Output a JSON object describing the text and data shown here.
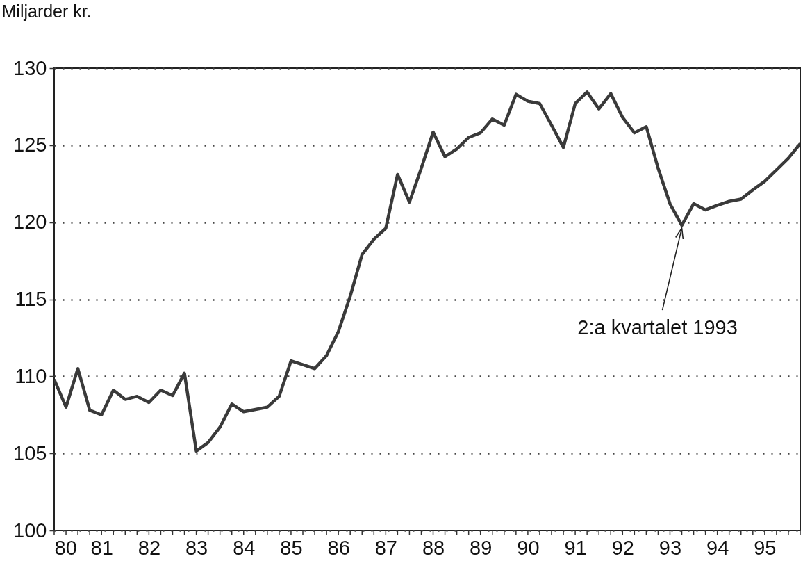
{
  "chart_data": {
    "type": "line",
    "ylabel": "Miljarder kr.",
    "x": [
      1980,
      1980.25,
      1980.5,
      1980.75,
      1981,
      1981.25,
      1981.5,
      1981.75,
      1982,
      1982.25,
      1982.5,
      1982.75,
      1983,
      1983.25,
      1983.5,
      1983.75,
      1984,
      1984.25,
      1984.5,
      1984.75,
      1985,
      1985.25,
      1985.5,
      1985.75,
      1986,
      1986.25,
      1986.5,
      1986.75,
      1987,
      1987.25,
      1987.5,
      1987.75,
      1988,
      1988.25,
      1988.5,
      1988.75,
      1989,
      1989.25,
      1989.5,
      1989.75,
      1990,
      1990.25,
      1990.5,
      1990.75,
      1991,
      1991.25,
      1991.5,
      1991.75,
      1992,
      1992.25,
      1992.5,
      1992.75,
      1993,
      1993.25,
      1993.5,
      1993.75,
      1994,
      1994.25,
      1994.5,
      1994.75,
      1995,
      1995.25,
      1995.5,
      1995.75
    ],
    "series": [
      {
        "color": "#3a3a3a",
        "values": [
          109.8,
          108.0,
          110.5,
          107.8,
          107.5,
          109.1,
          108.5,
          108.7,
          108.3,
          109.1,
          108.75,
          110.2,
          105.15,
          105.7,
          106.7,
          108.2,
          107.7,
          107.85,
          108.0,
          108.7,
          111.0,
          110.75,
          110.5,
          111.35,
          112.9,
          115.2,
          117.9,
          118.9,
          119.6,
          123.1,
          121.3,
          123.5,
          125.85,
          124.25,
          124.75,
          125.5,
          125.8,
          126.7,
          126.3,
          128.3,
          127.85,
          127.7,
          126.3,
          124.85,
          127.7,
          128.45,
          127.35,
          128.35,
          126.8,
          125.8,
          126.2,
          123.5,
          121.2,
          119.8,
          121.2,
          120.8,
          121.1,
          121.35,
          121.5,
          122.1,
          122.65,
          123.4,
          124.15,
          125.1
        ]
      }
    ],
    "xlim": [
      1980,
      1995.75
    ],
    "xticks": [
      {
        "value": 1980,
        "label": "80"
      },
      {
        "value": 1980.25,
        "label": null
      },
      {
        "value": 1980.5,
        "label": null
      },
      {
        "value": 1980.75,
        "label": null
      },
      {
        "value": 1981,
        "label": "81"
      },
      {
        "value": 1981.25,
        "label": null
      },
      {
        "value": 1981.5,
        "label": null
      },
      {
        "value": 1981.75,
        "label": null
      },
      {
        "value": 1982,
        "label": "82"
      },
      {
        "value": 1982.25,
        "label": null
      },
      {
        "value": 1982.5,
        "label": null
      },
      {
        "value": 1982.75,
        "label": null
      },
      {
        "value": 1983,
        "label": "83"
      },
      {
        "value": 1983.25,
        "label": null
      },
      {
        "value": 1983.5,
        "label": null
      },
      {
        "value": 1983.75,
        "label": null
      },
      {
        "value": 1984,
        "label": "84"
      },
      {
        "value": 1984.25,
        "label": null
      },
      {
        "value": 1984.5,
        "label": null
      },
      {
        "value": 1984.75,
        "label": null
      },
      {
        "value": 1985,
        "label": "85"
      },
      {
        "value": 1985.25,
        "label": null
      },
      {
        "value": 1985.5,
        "label": null
      },
      {
        "value": 1985.75,
        "label": null
      },
      {
        "value": 1986,
        "label": "86"
      },
      {
        "value": 1986.25,
        "label": null
      },
      {
        "value": 1986.5,
        "label": null
      },
      {
        "value": 1986.75,
        "label": null
      },
      {
        "value": 1987,
        "label": "87"
      },
      {
        "value": 1987.25,
        "label": null
      },
      {
        "value": 1987.5,
        "label": null
      },
      {
        "value": 1987.75,
        "label": null
      },
      {
        "value": 1988,
        "label": "88"
      },
      {
        "value": 1988.25,
        "label": null
      },
      {
        "value": 1988.5,
        "label": null
      },
      {
        "value": 1988.75,
        "label": null
      },
      {
        "value": 1989,
        "label": "89"
      },
      {
        "value": 1989.25,
        "label": null
      },
      {
        "value": 1989.5,
        "label": null
      },
      {
        "value": 1989.75,
        "label": null
      },
      {
        "value": 1990,
        "label": "90"
      },
      {
        "value": 1990.25,
        "label": null
      },
      {
        "value": 1990.5,
        "label": null
      },
      {
        "value": 1990.75,
        "label": null
      },
      {
        "value": 1991,
        "label": "91"
      },
      {
        "value": 1991.25,
        "label": null
      },
      {
        "value": 1991.5,
        "label": null
      },
      {
        "value": 1991.75,
        "label": null
      },
      {
        "value": 1992,
        "label": "92"
      },
      {
        "value": 1992.25,
        "label": null
      },
      {
        "value": 1992.5,
        "label": null
      },
      {
        "value": 1992.75,
        "label": null
      },
      {
        "value": 1993,
        "label": "93"
      },
      {
        "value": 1993.25,
        "label": null
      },
      {
        "value": 1993.5,
        "label": null
      },
      {
        "value": 1993.75,
        "label": null
      },
      {
        "value": 1994,
        "label": "94"
      },
      {
        "value": 1994.25,
        "label": null
      },
      {
        "value": 1994.5,
        "label": null
      },
      {
        "value": 1994.75,
        "label": null
      },
      {
        "value": 1995,
        "label": "95"
      },
      {
        "value": 1995.25,
        "label": null
      },
      {
        "value": 1995.5,
        "label": null
      },
      {
        "value": 1995.75,
        "label": null
      }
    ],
    "ylim": [
      100,
      130
    ],
    "yticks": [
      100,
      105,
      110,
      115,
      120,
      125,
      130
    ],
    "grid": "y",
    "annotations": [
      {
        "text": "2:a kvartalet 1993",
        "x": 1993.25,
        "y": 119.8
      }
    ]
  }
}
